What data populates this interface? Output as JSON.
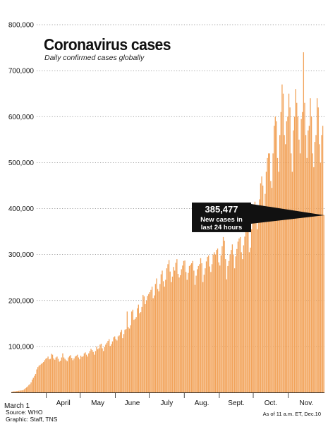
{
  "title": "Coronavirus cases",
  "subtitle": "Daily confirmed cases globally",
  "source": "Source: WHO",
  "credit": "Graphic: Staff, TNS",
  "note": "As of 11 a.m. ET, Dec.10",
  "colors": {
    "bar": "#f2a35a",
    "bar_edge": "#e8913f",
    "grid": "#888888",
    "callout_bg": "#111111",
    "callout_text": "#ffffff"
  },
  "chart_data": {
    "type": "bar",
    "title": "Coronavirus cases",
    "subtitle": "Daily confirmed cases globally",
    "xlabel": "",
    "ylabel": "",
    "ylim": [
      0,
      800000
    ],
    "yticks": [
      100000,
      200000,
      300000,
      400000,
      500000,
      600000,
      700000,
      800000
    ],
    "ytick_labels": [
      "100,000",
      "200,000",
      "300,000",
      "400,000",
      "500,000",
      "600,000",
      "700,000",
      "800,000"
    ],
    "grid": true,
    "x_start": "March 1",
    "month_labels": [
      "March 1",
      "April",
      "May",
      "June",
      "July",
      "Aug.",
      "Sept.",
      "Oct.",
      "Nov."
    ],
    "month_label_day_index": [
      0,
      31,
      61,
      92,
      122,
      153,
      184,
      214,
      245
    ],
    "values": [
      1500,
      2000,
      2500,
      2200,
      2800,
      3000,
      3500,
      3800,
      4200,
      4500,
      5000,
      7000,
      9000,
      11000,
      13000,
      16000,
      18000,
      22000,
      28000,
      32000,
      36000,
      40000,
      50000,
      55000,
      58000,
      60000,
      62000,
      64000,
      66000,
      70000,
      73000,
      75000,
      78000,
      72000,
      73000,
      84000,
      82000,
      74000,
      71000,
      76000,
      78000,
      73000,
      67000,
      69000,
      76000,
      85000,
      76000,
      73000,
      70000,
      68000,
      76000,
      79000,
      81000,
      75000,
      70000,
      74000,
      78000,
      80000,
      82000,
      76000,
      72000,
      80000,
      77000,
      79000,
      85000,
      87000,
      82000,
      78000,
      85000,
      90000,
      95000,
      92000,
      88000,
      82000,
      90000,
      100000,
      94000,
      96000,
      104000,
      106000,
      96000,
      90000,
      99000,
      104000,
      108000,
      112000,
      116000,
      101000,
      105000,
      111000,
      120000,
      122000,
      116000,
      113000,
      122000,
      124000,
      131000,
      136000,
      118000,
      127000,
      136000,
      138000,
      176000,
      142000,
      139000,
      146000,
      176000,
      180000,
      158000,
      160000,
      164000,
      183000,
      191000,
      172000,
      175000,
      186000,
      212000,
      209000,
      192000,
      200000,
      210000,
      214000,
      218000,
      223000,
      230000,
      205000,
      211000,
      236000,
      248000,
      225000,
      220000,
      236000,
      257000,
      265000,
      242000,
      230000,
      245000,
      270000,
      279000,
      288000,
      263000,
      240000,
      252000,
      273000,
      265000,
      282000,
      290000,
      258000,
      250000,
      255000,
      268000,
      276000,
      286000,
      287000,
      262000,
      245000,
      260000,
      275000,
      278000,
      281000,
      286000,
      265000,
      234000,
      254000,
      268000,
      275000,
      279000,
      292000,
      281000,
      240000,
      256000,
      270000,
      285000,
      295000,
      298000,
      274000,
      262000,
      279000,
      300000,
      305000,
      300000,
      310000,
      313000,
      283000,
      276000,
      298000,
      318000,
      338000,
      330000,
      290000,
      246000,
      275000,
      286000,
      300000,
      310000,
      322000,
      300000,
      270000,
      296000,
      312000,
      328000,
      335000,
      338000,
      305000,
      290000,
      320000,
      339000,
      362000,
      365000,
      350000,
      305000,
      315000,
      355000,
      380000,
      400000,
      415000,
      390000,
      355000,
      395000,
      420000,
      455000,
      470000,
      450000,
      395000,
      432000,
      480000,
      510000,
      520000,
      520000,
      460000,
      445000,
      520000,
      580000,
      600000,
      590000,
      510000,
      480000,
      560000,
      610000,
      670000,
      650000,
      560000,
      540000,
      590000,
      600000,
      650000,
      620000,
      520000,
      480000,
      570000,
      600000,
      660000,
      630000,
      600000,
      550000,
      520000,
      595000,
      610000,
      740000,
      630000,
      560000,
      510000,
      570000,
      580000,
      640000,
      600000,
      520000,
      490000,
      545000,
      560000,
      640000,
      620000,
      540000,
      500000,
      560000,
      580000,
      385477
    ],
    "annotations": [
      {
        "text_value": "385,477",
        "text_line1": "New cases in",
        "text_line2": "last 24 hours",
        "value": 385477,
        "target": "last"
      }
    ]
  }
}
